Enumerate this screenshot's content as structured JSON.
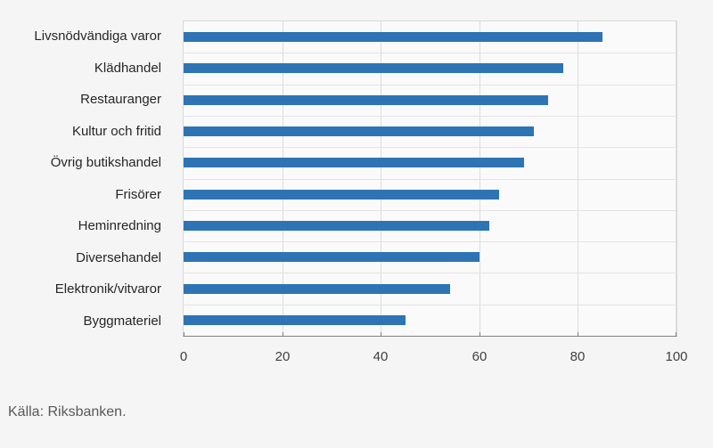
{
  "chart_data": {
    "type": "bar",
    "orientation": "horizontal",
    "categories": [
      "Livsnödvändiga varor",
      "Klädhandel",
      "Restauranger",
      "Kultur och fritid",
      "Övrig butikshandel",
      "Frisörer",
      "Heminredning",
      "Diversehandel",
      "Elektronik/vitvaror",
      "Byggmateriel"
    ],
    "values": [
      85,
      77,
      74,
      71,
      69,
      64,
      62,
      60,
      54,
      45
    ],
    "title": "",
    "xlabel": "",
    "ylabel": "",
    "xlim": [
      0,
      100
    ],
    "xticks": [
      0,
      20,
      40,
      60,
      80,
      100
    ],
    "grid": "on",
    "legend": "none",
    "bar_color": "#2e74b5"
  },
  "source": "Källa: Riksbanken.",
  "colors": {
    "page_background": "#f5f5f6",
    "plot_background": "#fafafa",
    "gridline": "#dcdcdc",
    "axis_line": "#7f7f7f",
    "bar": "#2e74b5",
    "label_text": "#262626",
    "tick_text": "#404040",
    "source_text": "#595959"
  }
}
